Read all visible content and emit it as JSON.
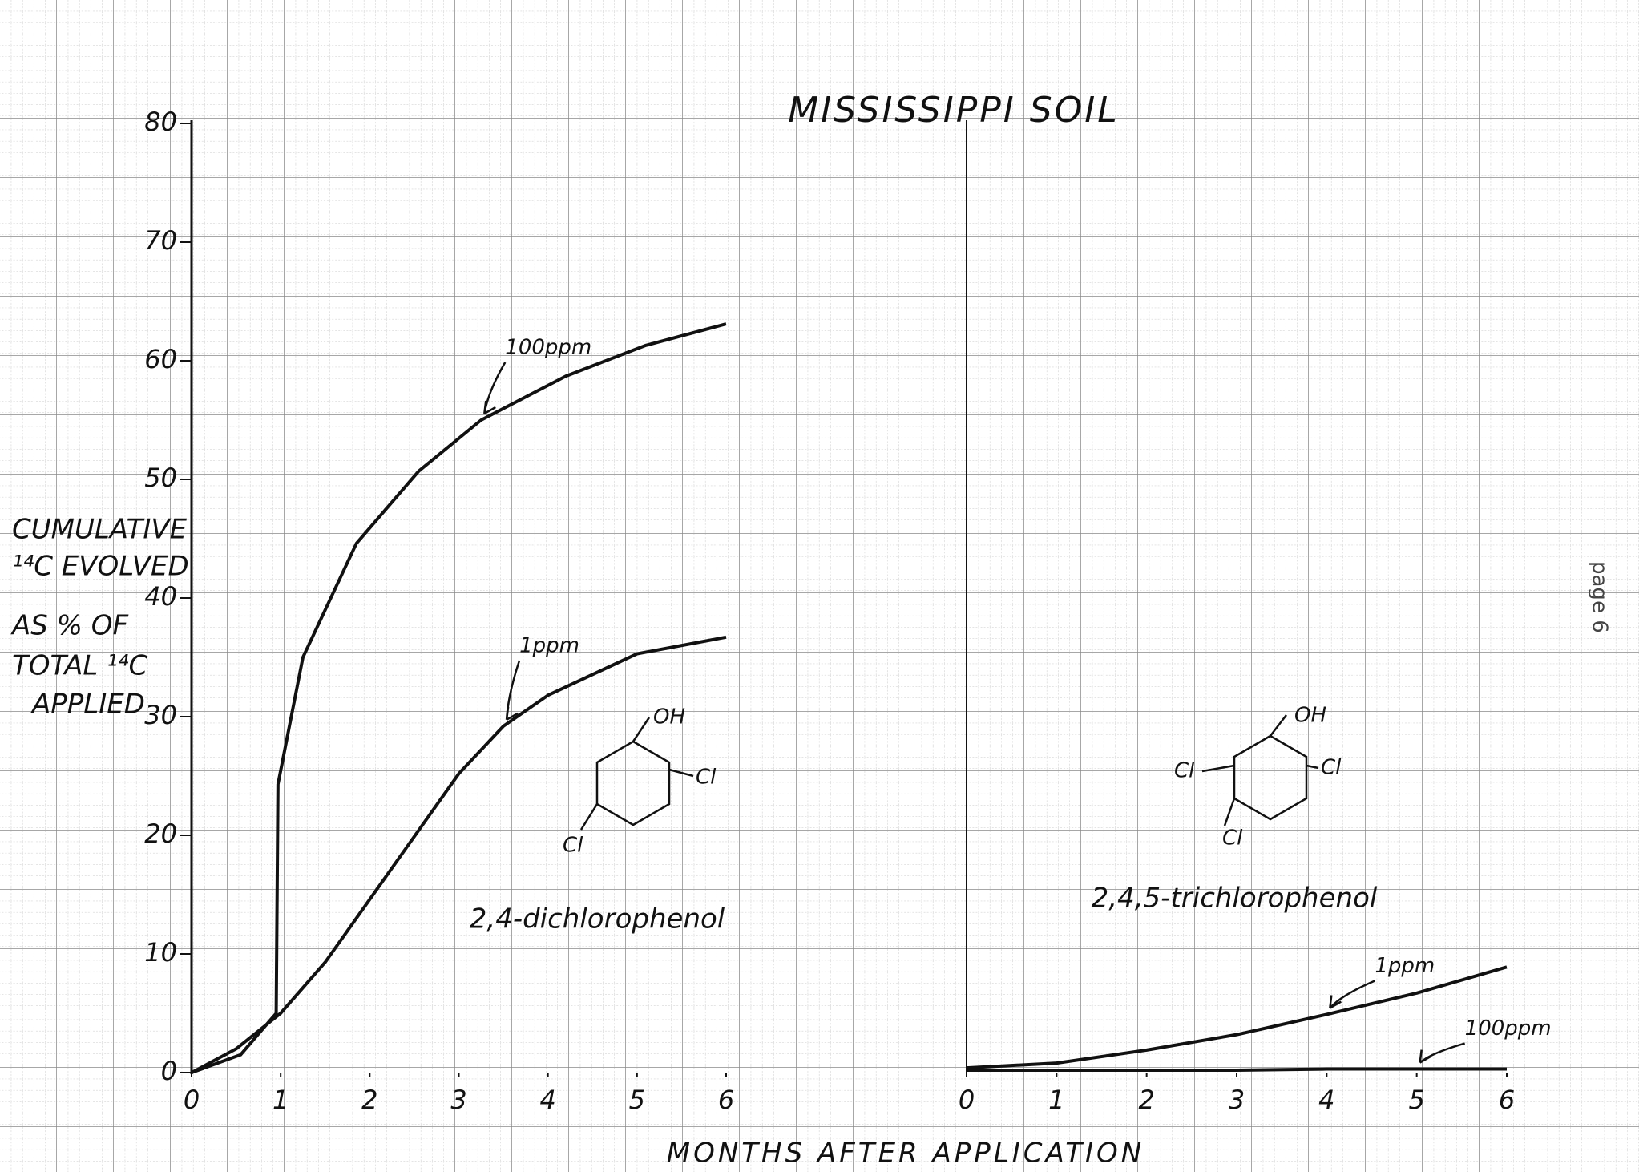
{
  "title": "MISSISSIPPI SOIL",
  "y_label_lines": [
    "CUMULATIVE",
    "¹⁴C EVOLVED",
    "AS % OF",
    "TOTAL ¹⁴C",
    "APPLIED"
  ],
  "x_label": "MONTHS AFTER APPLICATION",
  "page_label": "page 6",
  "chart_data": [
    {
      "type": "line",
      "subtitle": "2,4-dichlorophenol",
      "structure_labels": [
        "OH",
        "Cl",
        "Cl"
      ],
      "xlim": [
        0,
        6
      ],
      "xticks": [
        0,
        1,
        2,
        3,
        4,
        5,
        6
      ],
      "ylim": [
        0,
        80
      ],
      "yticks": [
        0,
        10,
        20,
        30,
        40,
        50,
        60,
        70,
        80
      ],
      "series": [
        {
          "name": "100ppm",
          "color": "#111111",
          "x": [
            0,
            0.55,
            0.95,
            0.97,
            1.25,
            1.85,
            2.55,
            3.25,
            4.2,
            5.1,
            6
          ],
          "values": [
            0,
            1.5,
            5,
            24.3,
            35,
            44.6,
            50.7,
            55,
            58.7,
            61.3,
            63.1
          ]
        },
        {
          "name": "1ppm",
          "color": "#111111",
          "x": [
            0,
            0.5,
            1,
            1.5,
            2,
            2.5,
            3,
            3.5,
            4,
            5,
            6
          ],
          "values": [
            0,
            2,
            5,
            9.3,
            14.6,
            19.9,
            25.2,
            29.2,
            31.8,
            35.3,
            36.7
          ]
        }
      ]
    },
    {
      "type": "line",
      "subtitle": "2,4,5-trichlorophenol",
      "structure_labels": [
        "OH",
        "Cl",
        "Cl",
        "Cl"
      ],
      "xlim": [
        0,
        6
      ],
      "xticks": [
        0,
        1,
        2,
        3,
        4,
        5,
        6
      ],
      "ylim": [
        0,
        80
      ],
      "series": [
        {
          "name": "1ppm",
          "color": "#111111",
          "x": [
            0,
            1,
            2,
            3,
            4,
            5,
            6
          ],
          "values": [
            0.4,
            0.8,
            1.9,
            3.2,
            4.9,
            6.7,
            8.9
          ]
        },
        {
          "name": "100ppm",
          "color": "#111111",
          "x": [
            0,
            1,
            2,
            3,
            4,
            5,
            6
          ],
          "values": [
            0.2,
            0.2,
            0.2,
            0.2,
            0.3,
            0.3,
            0.3
          ]
        }
      ]
    }
  ]
}
